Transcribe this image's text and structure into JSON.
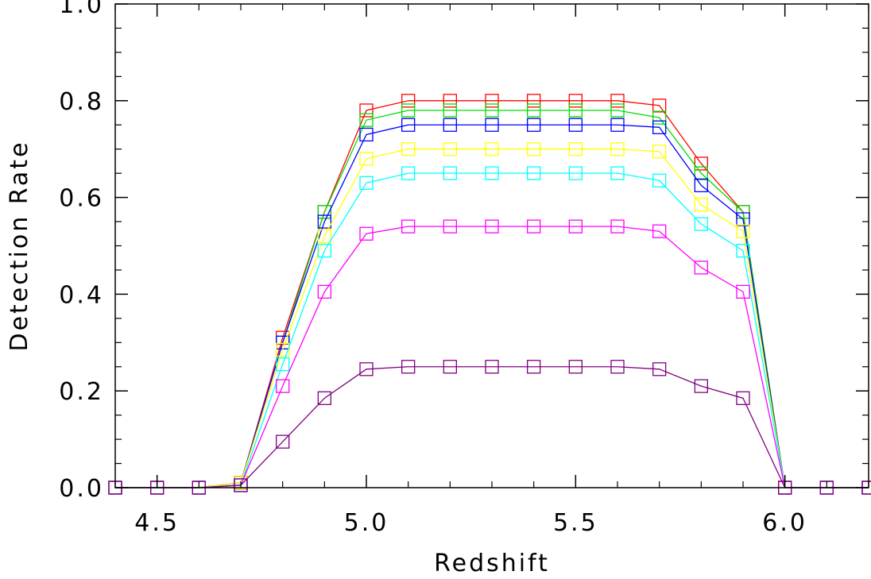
{
  "chart_data": {
    "type": "line",
    "title": "",
    "xlabel": "Redshift",
    "ylabel": "Detection Rate",
    "xlim": [
      4.4,
      6.2
    ],
    "ylim": [
      0.0,
      1.0
    ],
    "x_ticks": [
      4.5,
      5.0,
      5.5,
      6.0
    ],
    "x_tick_labels": [
      "4.5",
      "5.0",
      "5.5",
      "6.0"
    ],
    "y_ticks": [
      0.0,
      0.2,
      0.4,
      0.6,
      0.8,
      1.0
    ],
    "y_tick_labels": [
      "0.0",
      "0.2",
      "0.4",
      "0.6",
      "0.8",
      "1.0"
    ],
    "x_minor_step": 0.1,
    "y_minor_step": 0.05,
    "marker": "square",
    "grid": false,
    "legend": "none",
    "x": [
      4.4,
      4.5,
      4.6,
      4.7,
      4.8,
      4.9,
      5.0,
      5.1,
      5.2,
      5.3,
      5.4,
      5.5,
      5.6,
      5.7,
      5.8,
      5.9,
      6.0,
      6.1,
      6.2
    ],
    "series": [
      {
        "color": "#ff0000",
        "values": [
          0,
          0,
          0,
          0.01,
          0.31,
          0.57,
          0.78,
          0.8,
          0.8,
          0.8,
          0.8,
          0.8,
          0.8,
          0.79,
          0.67,
          0.57,
          0,
          0,
          0
        ]
      },
      {
        "color": "#00dd00",
        "values": [
          0,
          0,
          0,
          0.01,
          0.3,
          0.57,
          0.76,
          0.78,
          0.78,
          0.78,
          0.78,
          0.78,
          0.78,
          0.765,
          0.65,
          0.57,
          0,
          0,
          0
        ]
      },
      {
        "color": "#0000ff",
        "values": [
          0,
          0,
          0,
          0.01,
          0.3,
          0.55,
          0.73,
          0.75,
          0.75,
          0.75,
          0.75,
          0.75,
          0.75,
          0.745,
          0.625,
          0.555,
          0,
          0,
          0
        ]
      },
      {
        "color": "#ffff00",
        "values": [
          0,
          0,
          0,
          0.01,
          0.285,
          0.52,
          0.68,
          0.7,
          0.7,
          0.7,
          0.7,
          0.7,
          0.7,
          0.695,
          0.585,
          0.53,
          0,
          0,
          0
        ]
      },
      {
        "color": "#00ffff",
        "values": [
          0,
          0,
          0,
          0.005,
          0.255,
          0.49,
          0.63,
          0.65,
          0.65,
          0.65,
          0.65,
          0.65,
          0.65,
          0.635,
          0.545,
          0.49,
          0,
          0,
          0
        ]
      },
      {
        "color": "#ff00ff",
        "values": [
          0,
          0,
          0,
          0.005,
          0.21,
          0.405,
          0.525,
          0.54,
          0.54,
          0.54,
          0.54,
          0.54,
          0.54,
          0.53,
          0.455,
          0.405,
          0,
          0,
          0
        ]
      },
      {
        "color": "#800080",
        "values": [
          0,
          0,
          0,
          0.005,
          0.095,
          0.185,
          0.245,
          0.25,
          0.25,
          0.25,
          0.25,
          0.25,
          0.25,
          0.245,
          0.21,
          0.185,
          0,
          0,
          0
        ]
      }
    ]
  }
}
